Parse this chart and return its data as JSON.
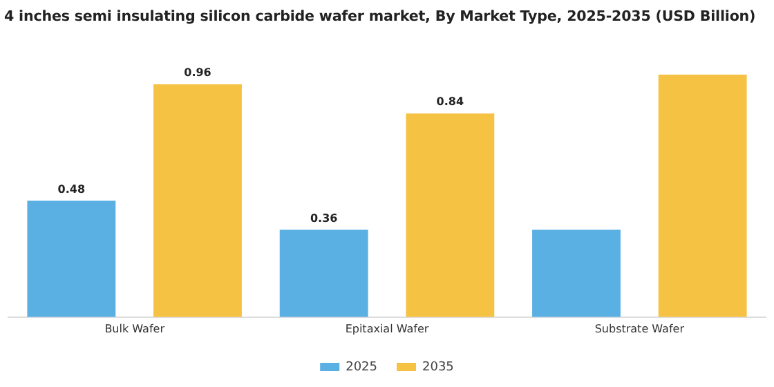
{
  "chart_data": {
    "type": "bar",
    "title": "4 inches semi insulating silicon carbide wafer market, By Market Type, 2025-2035 (USD Billion)",
    "categories": [
      "Bulk Wafer",
      "Epitaxial Wafer",
      "Substrate Wafer"
    ],
    "series": [
      {
        "name": "2025",
        "color": "#5aafe3",
        "values": [
          0.48,
          0.36,
          0.36
        ],
        "value_labels": [
          "0.48",
          "0.36",
          null
        ]
      },
      {
        "name": "2035",
        "color": "#f6c244",
        "values": [
          0.96,
          0.84,
          1.0
        ],
        "value_labels": [
          "0.96",
          "0.84",
          null
        ]
      }
    ],
    "legend": "bottom",
    "grid": false
  }
}
